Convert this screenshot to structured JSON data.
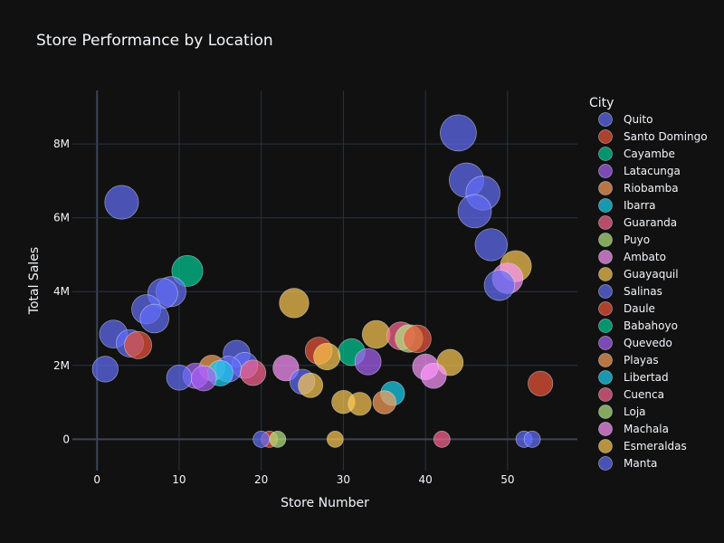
{
  "chart_data": {
    "type": "scatter",
    "title": "Store Performance by Location",
    "xlabel": "Store Number",
    "ylabel": "Total Sales",
    "xlim": [
      -3,
      58.5
    ],
    "ylim": [
      -850000,
      9450000
    ],
    "x_ticks": [
      0,
      10,
      20,
      30,
      40,
      50
    ],
    "x_tick_labels": [
      "0",
      "10",
      "20",
      "30",
      "40",
      "50"
    ],
    "y_ticks": [
      0,
      2000000,
      4000000,
      6000000,
      8000000
    ],
    "y_tick_labels": [
      "0",
      "2M",
      "4M",
      "6M",
      "8M"
    ],
    "grid": true,
    "legend_title": "City",
    "legend_position": "right",
    "series": [
      {
        "name": "Quito",
        "color": "#636efa",
        "points": [
          {
            "x": 1,
            "y": 1900000
          },
          {
            "x": 2,
            "y": 2850000
          },
          {
            "x": 3,
            "y": 6420000
          },
          {
            "x": 4,
            "y": 2600000
          },
          {
            "x": 6,
            "y": 3520000
          },
          {
            "x": 7,
            "y": 3270000
          },
          {
            "x": 8,
            "y": 3950000
          },
          {
            "x": 9,
            "y": 4000000
          },
          {
            "x": 10,
            "y": 1670000
          },
          {
            "x": 44,
            "y": 8300000
          },
          {
            "x": 45,
            "y": 7020000
          },
          {
            "x": 46,
            "y": 6180000
          },
          {
            "x": 47,
            "y": 6670000
          },
          {
            "x": 48,
            "y": 5270000
          }
        ]
      },
      {
        "name": "Santo Domingo",
        "color": "#ef553b",
        "points": [
          {
            "x": 5,
            "y": 2550000
          },
          {
            "x": 21,
            "y": 0
          },
          {
            "x": 39,
            "y": 2720000
          }
        ]
      },
      {
        "name": "Cayambe",
        "color": "#00cc96",
        "points": [
          {
            "x": 11,
            "y": 4560000
          }
        ]
      },
      {
        "name": "Latacunga",
        "color": "#ab63fa",
        "points": [
          {
            "x": 12,
            "y": 1720000
          },
          {
            "x": 13,
            "y": 1650000
          }
        ]
      },
      {
        "name": "Riobamba",
        "color": "#ffa15a",
        "points": [
          {
            "x": 14,
            "y": 1930000
          }
        ]
      },
      {
        "name": "Ibarra",
        "color": "#19d3f3",
        "points": [
          {
            "x": 15,
            "y": 1790000
          }
        ]
      },
      {
        "name": "Guaranda",
        "color": "#ff6692",
        "points": [
          {
            "x": 19,
            "y": 1800000
          }
        ]
      },
      {
        "name": "Puyo",
        "color": "#b6e880",
        "points": [
          {
            "x": 22,
            "y": 0
          }
        ]
      },
      {
        "name": "Ambato",
        "color": "#ff97ff",
        "points": [
          {
            "x": 23,
            "y": 1930000
          },
          {
            "x": 50,
            "y": 4360000
          }
        ]
      },
      {
        "name": "Guayaquil",
        "color": "#fecb52",
        "points": [
          {
            "x": 24,
            "y": 3690000
          },
          {
            "x": 26,
            "y": 1460000
          },
          {
            "x": 28,
            "y": 2240000
          },
          {
            "x": 29,
            "y": 0
          },
          {
            "x": 30,
            "y": 1010000
          },
          {
            "x": 32,
            "y": 960000
          },
          {
            "x": 34,
            "y": 2840000
          },
          {
            "x": 51,
            "y": 4690000
          }
        ]
      },
      {
        "name": "Salinas",
        "color": "#636efa",
        "points": [
          {
            "x": 25,
            "y": 1560000
          }
        ]
      },
      {
        "name": "Daule",
        "color": "#ef553b",
        "points": [
          {
            "x": 27,
            "y": 2400000
          }
        ]
      },
      {
        "name": "Babahoyo",
        "color": "#00cc96",
        "points": [
          {
            "x": 31,
            "y": 2360000
          }
        ]
      },
      {
        "name": "Quevedo",
        "color": "#ab63fa",
        "points": [
          {
            "x": 33,
            "y": 2100000
          }
        ]
      },
      {
        "name": "Playas",
        "color": "#ffa15a",
        "points": [
          {
            "x": 35,
            "y": 1000000
          }
        ]
      },
      {
        "name": "Libertad",
        "color": "#19d3f3",
        "points": [
          {
            "x": 36,
            "y": 1240000
          }
        ]
      },
      {
        "name": "Cuenca",
        "color": "#ff6692",
        "points": [
          {
            "x": 37,
            "y": 2800000
          },
          {
            "x": 42,
            "y": 0
          }
        ]
      },
      {
        "name": "Loja",
        "color": "#b6e880",
        "points": [
          {
            "x": 38,
            "y": 2730000
          }
        ]
      },
      {
        "name": "Machala",
        "color": "#ff97ff",
        "points": [
          {
            "x": 40,
            "y": 1960000
          },
          {
            "x": 41,
            "y": 1720000
          }
        ]
      },
      {
        "name": "Esmeraldas",
        "color": "#fecb52",
        "points": [
          {
            "x": 43,
            "y": 2080000
          }
        ]
      },
      {
        "name": "Manta",
        "color": "#636efa",
        "points": [
          {
            "x": 52,
            "y": 0
          },
          {
            "x": 53,
            "y": 0
          }
        ]
      }
    ],
    "extra_points": [
      {
        "series": "Quito",
        "x": 16,
        "y": 1900000
      },
      {
        "series": "Quito",
        "x": 17,
        "y": 2320000
      },
      {
        "series": "Quito",
        "x": 18,
        "y": 2000000
      },
      {
        "series": "Quito",
        "x": 20,
        "y": 0
      },
      {
        "series": "Quito",
        "x": 49,
        "y": 4170000
      },
      {
        "series": "Daule",
        "x": 54,
        "y": 1510000
      }
    ]
  }
}
